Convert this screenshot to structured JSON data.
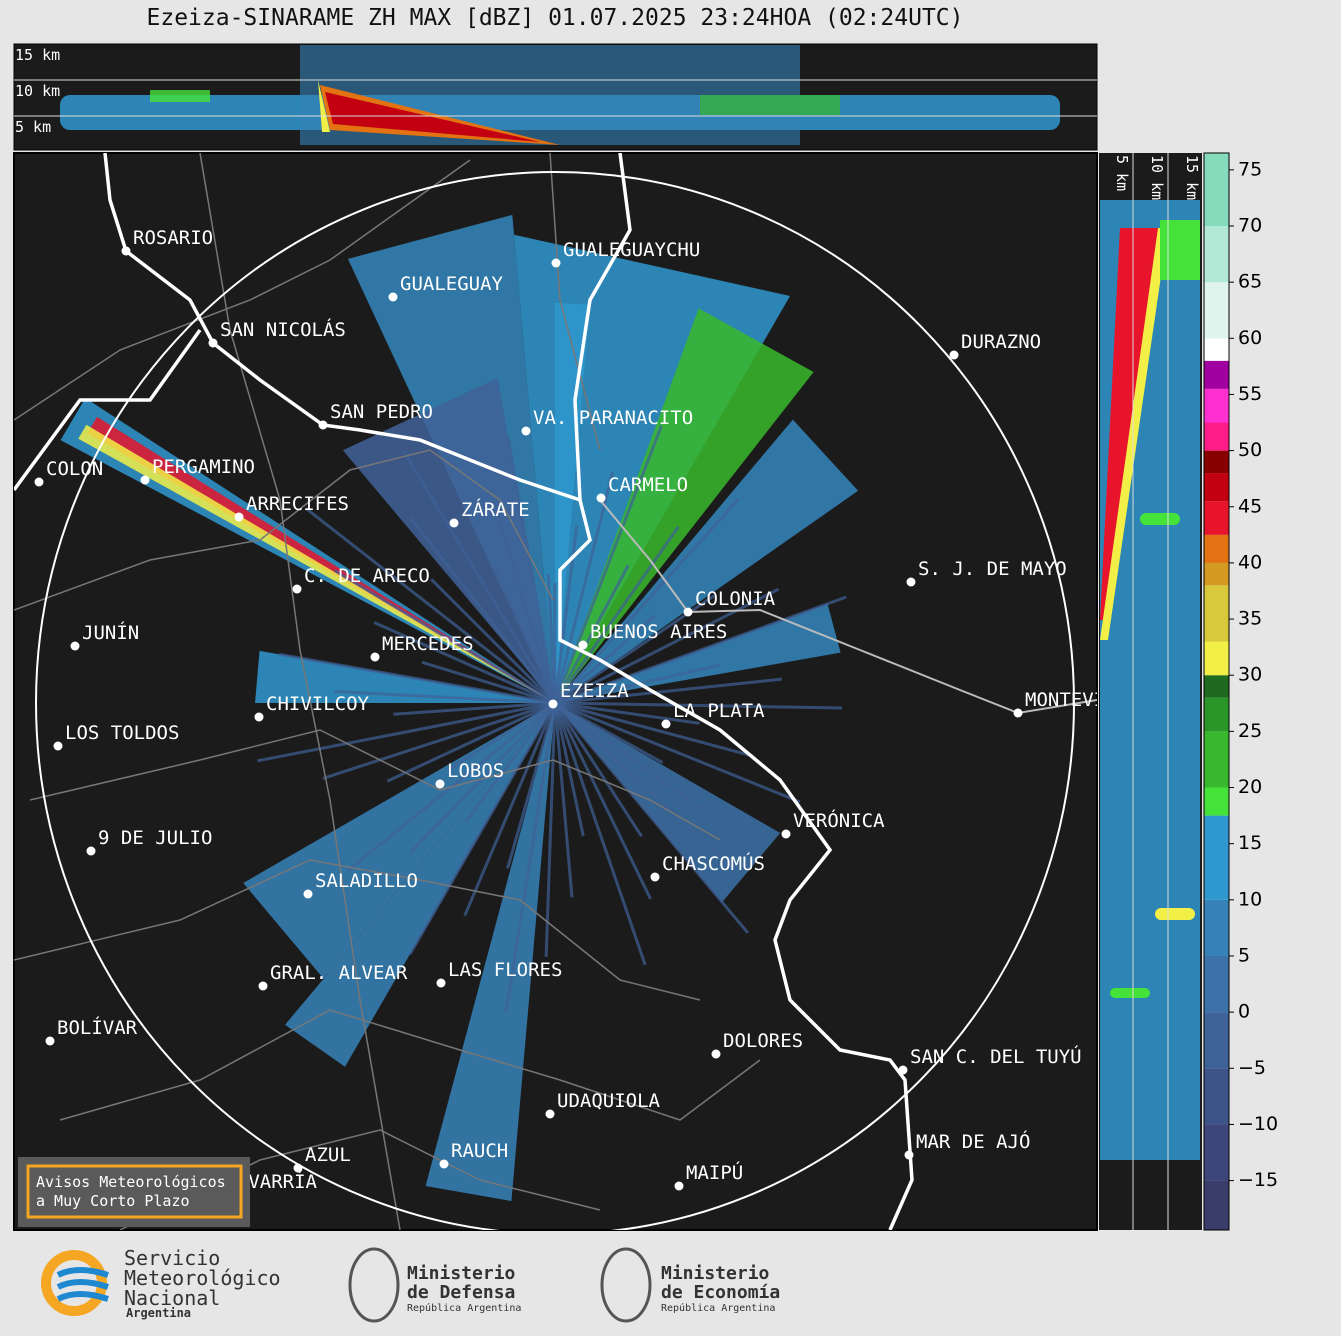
{
  "title": "Ezeiza-SINARAME ZH MAX [dBZ] 01.07.2025 23:24HOA (02:24UTC)",
  "top_panel": {
    "height_labels": [
      "15 km",
      "10 km",
      "5 km"
    ]
  },
  "side_panel": {
    "height_labels": [
      "5 km",
      "10 km",
      "15 km"
    ]
  },
  "map": {
    "places": [
      "ROSARIO",
      "GUALEGUAYCHU",
      "GUALEGUAY",
      "SAN NICOLÁS",
      "DURAZNO",
      "SAN PEDRO",
      "VA. PARANACITO",
      "PERGAMINO",
      "COLON",
      "CARMELO",
      "ARRECIFES",
      "ZÁRATE",
      "C. DE ARECO",
      "S. J. DE MAYO",
      "COLONIA",
      "JUNÍN",
      "BUENOS AIRES",
      "MERCEDES",
      "EZEIZA",
      "MONTEVIDEO",
      "CHIVILCOY",
      "LA PLATA",
      "LOS TOLDOS",
      "LOBOS",
      "VERÓNICA",
      "9 DE JULIO",
      "CHASCOMÚS",
      "SALADILLO",
      "GRAL. ALVEAR",
      "LAS FLORES",
      "BOLÍVAR",
      "DOLORES",
      "SAN C. DEL TUYÚ",
      "UDAQUIOLA",
      "MAR DE AJÓ",
      "AZUL",
      "RAUCH",
      "OLAVARRÍA",
      "MAIPÚ"
    ]
  },
  "notice": {
    "lines": [
      "Avisos Meteorológicos",
      "a Muy Corto Plazo"
    ]
  },
  "colorbar": {
    "ticks": [
      {
        "value": -15,
        "label": "−15"
      },
      {
        "value": -10,
        "label": "−10"
      },
      {
        "value": -5,
        "label": "−5"
      },
      0,
      5,
      10,
      15,
      20,
      25,
      30,
      35,
      40,
      45,
      50,
      55,
      60,
      65,
      70,
      75
    ],
    "segments": [
      {
        "from": -19.4,
        "to": -15,
        "color": "#3a3d6a"
      },
      {
        "from": -15,
        "to": -10,
        "color": "#3c467a"
      },
      {
        "from": -10,
        "to": -5,
        "color": "#3e5489"
      },
      {
        "from": -5,
        "to": 0,
        "color": "#3f6298"
      },
      {
        "from": 0,
        "to": 5,
        "color": "#3c72a8"
      },
      {
        "from": 5,
        "to": 10,
        "color": "#3682b8"
      },
      {
        "from": 10,
        "to": 17.5,
        "color": "#2f98cf"
      },
      {
        "from": 17.5,
        "to": 20,
        "color": "#45e23a"
      },
      {
        "from": 20,
        "to": 25,
        "color": "#38b82c"
      },
      {
        "from": 25,
        "to": 28,
        "color": "#2a962a"
      },
      {
        "from": 28,
        "to": 30,
        "color": "#1e6a1e"
      },
      {
        "from": 30,
        "to": 33,
        "color": "#f2f046"
      },
      {
        "from": 33,
        "to": 38,
        "color": "#d8c83a"
      },
      {
        "from": 38,
        "to": 40,
        "color": "#d49a22"
      },
      {
        "from": 40,
        "to": 42.5,
        "color": "#e27212"
      },
      {
        "from": 42.5,
        "to": 45.5,
        "color": "#e8142c"
      },
      {
        "from": 45.5,
        "to": 48,
        "color": "#c20012"
      },
      {
        "from": 48,
        "to": 50,
        "color": "#880000"
      },
      {
        "from": 50,
        "to": 52.5,
        "color": "#ff1c86"
      },
      {
        "from": 52.5,
        "to": 55.5,
        "color": "#ff30d0"
      },
      {
        "from": 55.5,
        "to": 58,
        "color": "#a000a0"
      },
      {
        "from": 58,
        "to": 60,
        "color": "#ffffff"
      },
      {
        "from": 60,
        "to": 65,
        "color": "#dff4ec"
      },
      {
        "from": 65,
        "to": 70,
        "color": "#b2e9d6"
      },
      {
        "from": 70,
        "to": 76.5,
        "color": "#84dcbd"
      }
    ]
  },
  "footer": {
    "smn": [
      "Servicio",
      "Meteorológico",
      "Nacional",
      "Argentina"
    ],
    "defensa": [
      "Ministerio",
      "de Defensa",
      "República Argentina"
    ],
    "economia": [
      "Ministerio",
      "de Economía",
      "República Argentina"
    ]
  }
}
